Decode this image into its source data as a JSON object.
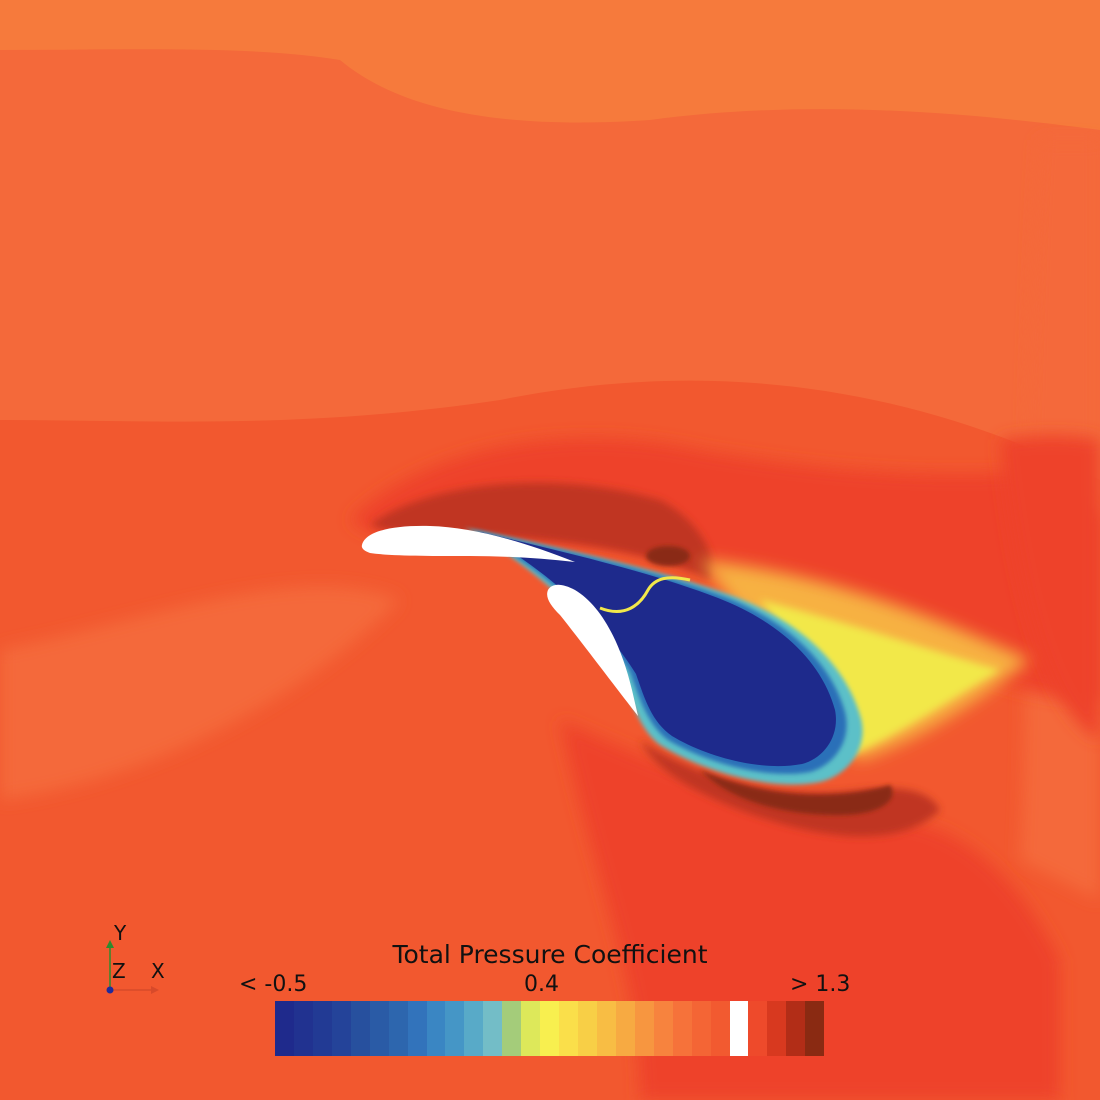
{
  "legend": {
    "title": "Total Pressure Coefficient",
    "min_label": "< -0.5",
    "mid_label": "0.4",
    "max_label": "> 1.3",
    "colors": [
      "#1f2a8c",
      "#213290",
      "#223a94",
      "#244399",
      "#27509e",
      "#2a5ba6",
      "#2d66ae",
      "#3273bb",
      "#3a86c3",
      "#4596c6",
      "#58aac8",
      "#73bdc7",
      "#a4cc7a",
      "#dde85a",
      "#f8ef4f",
      "#fadf4a",
      "#f8cf46",
      "#f8bd44",
      "#f7aa42",
      "#f79640",
      "#f7833e",
      "#f6723a",
      "#f46535",
      "#f25a30",
      "#ffffff",
      "#ee4a2b",
      "#d8391f",
      "#b22d17",
      "#8a2a12"
    ]
  },
  "axes_triad": {
    "y_label": "Y",
    "z_label": "Z",
    "x_label": "X"
  },
  "field_colors": {
    "background": "#f2582f",
    "freestream_light": "#f67a3c",
    "freestream_mid": "#f4693a",
    "red_band": "#ee432a",
    "dark_red": "#c03421",
    "darkest": "#8a2a12",
    "core_blue": "#1e2a8c",
    "blue_edge": "#2b70b8",
    "cyan": "#5bc0c8",
    "yellow": "#f2e84a",
    "amber": "#f7b143",
    "airfoil": "#ffffff"
  }
}
